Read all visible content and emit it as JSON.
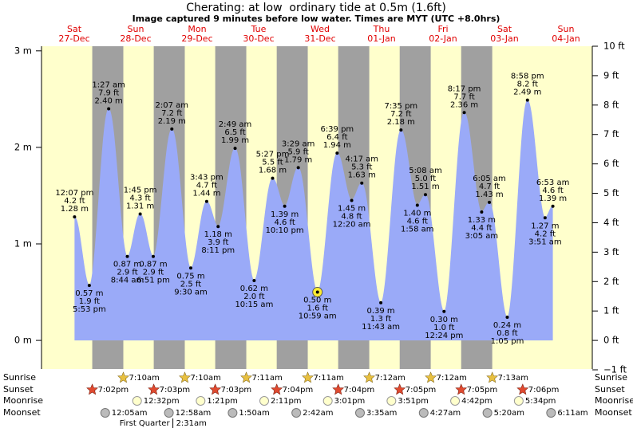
{
  "chart_data": {
    "type": "tide",
    "title": "Cherating: at low  ordinary tide at 0.5m (1.6ft)",
    "subtitle": "Image captured 9 minutes before low water. Times are MYT (UTC +8.0hrs)",
    "ylim": [
      -0.3048,
      3.048
    ],
    "yticks": [
      {
        "value": 0,
        "label": "0 m"
      },
      {
        "value": 1,
        "label": "1 m"
      },
      {
        "value": 2,
        "label": "2 m"
      },
      {
        "value": 3,
        "label": "3 m"
      }
    ],
    "y2lim": [
      -1,
      10
    ],
    "y2ticks": [
      {
        "value": -1,
        "label": "−1 ft"
      },
      {
        "value": 0,
        "label": "0 ft"
      },
      {
        "value": 1,
        "label": "1 ft"
      },
      {
        "value": 2,
        "label": "2 ft"
      },
      {
        "value": 3,
        "label": "3 ft"
      },
      {
        "value": 4,
        "label": "4 ft"
      },
      {
        "value": 5,
        "label": "5 ft"
      },
      {
        "value": 6,
        "label": "6 ft"
      },
      {
        "value": 7,
        "label": "7 ft"
      },
      {
        "value": 8,
        "label": "8 ft"
      },
      {
        "value": 9,
        "label": "9 ft"
      },
      {
        "value": 10,
        "label": "10 ft"
      }
    ],
    "color": "#9aaaf8",
    "row_labels": {
      "sunrise": "Sunrise",
      "sunset": "Sunset",
      "moonrise": "Moonrise",
      "moonset": "Moonset"
    },
    "days": [
      {
        "name": "Sat",
        "date": "27-Dec",
        "sunset": "7:02pm",
        "tides": [
          {
            "time": "12:07 pm",
            "m": 1.28,
            "m_label": "1.28 m",
            "ft_label": "4.2 ft"
          },
          {
            "time": "5:53 pm",
            "m": 0.57,
            "m_label": "0.57 m",
            "ft_label": "1.9 ft"
          }
        ]
      },
      {
        "name": "Sun",
        "date": "28-Dec",
        "sunrise": "7:10am",
        "sunset": "7:03pm",
        "moonrise": "12:32pm",
        "moonset": "12:05am",
        "tides": [
          {
            "time": "1:27 am",
            "m": 2.4,
            "m_label": "2.40 m",
            "ft_label": "7.9 ft"
          },
          {
            "time": "8:44 am",
            "m": 0.87,
            "m_label": "0.87 m",
            "ft_label": "2.9 ft"
          },
          {
            "time": "1:45 pm",
            "m": 1.31,
            "m_label": "1.31 m",
            "ft_label": "4.3 ft"
          },
          {
            "time": "6:51 pm",
            "m": 0.87,
            "m_label": "0.87 m",
            "ft_label": "2.9 ft"
          }
        ]
      },
      {
        "name": "Mon",
        "date": "29-Dec",
        "sunrise": "7:10am",
        "sunset": "7:03pm",
        "moonrise": "1:21pm",
        "moonset": "12:58am",
        "phase": "First Quarter",
        "phase_time": "2:31am",
        "tides": [
          {
            "time": "2:07 am",
            "m": 2.19,
            "m_label": "2.19 m",
            "ft_label": "7.2 ft"
          },
          {
            "time": "9:30 am",
            "m": 0.75,
            "m_label": "0.75 m",
            "ft_label": "2.5 ft"
          },
          {
            "time": "3:43 pm",
            "m": 1.44,
            "m_label": "1.44 m",
            "ft_label": "4.7 ft"
          },
          {
            "time": "8:11 pm",
            "m": 1.18,
            "m_label": "1.18 m",
            "ft_label": "3.9 ft"
          }
        ]
      },
      {
        "name": "Tue",
        "date": "30-Dec",
        "sunrise": "7:11am",
        "sunset": "7:04pm",
        "moonrise": "2:11pm",
        "moonset": "1:50am",
        "tides": [
          {
            "time": "2:49 am",
            "m": 1.99,
            "m_label": "1.99 m",
            "ft_label": "6.5 ft"
          },
          {
            "time": "10:15 am",
            "m": 0.62,
            "m_label": "0.62 m",
            "ft_label": "2.0 ft"
          },
          {
            "time": "5:27 pm",
            "m": 1.68,
            "m_label": "1.68 m",
            "ft_label": "5.5 ft"
          },
          {
            "time": "10:10 pm",
            "m": 1.39,
            "m_label": "1.39 m",
            "ft_label": "4.6 ft"
          }
        ]
      },
      {
        "name": "Wed",
        "date": "31-Dec",
        "sunrise": "7:11am",
        "sunset": "7:04pm",
        "moonrise": "3:01pm",
        "moonset": "2:42am",
        "tides": [
          {
            "time": "3:29 am",
            "m": 1.79,
            "m_label": "1.79 m",
            "ft_label": "5.9 ft"
          },
          {
            "time": "10:59 am",
            "m": 0.5,
            "m_label": "0.50 m",
            "ft_label": "1.6 ft",
            "now": true
          },
          {
            "time": "6:39 pm",
            "m": 1.94,
            "m_label": "1.94 m",
            "ft_label": "6.4 ft"
          }
        ]
      },
      {
        "name": "Thu",
        "date": "01-Jan",
        "sunrise": "7:12am",
        "sunset": "7:05pm",
        "moonrise": "3:51pm",
        "moonset": "3:35am",
        "tides": [
          {
            "time": "12:20 am",
            "m": 1.45,
            "m_label": "1.45 m",
            "ft_label": "4.8 ft"
          },
          {
            "time": "4:17 am",
            "m": 1.63,
            "m_label": "1.63 m",
            "ft_label": "5.3 ft"
          },
          {
            "time": "11:43 am",
            "m": 0.39,
            "m_label": "0.39 m",
            "ft_label": "1.3 ft"
          },
          {
            "time": "7:35 pm",
            "m": 2.18,
            "m_label": "2.18 m",
            "ft_label": "7.2 ft"
          }
        ]
      },
      {
        "name": "Fri",
        "date": "02-Jan",
        "sunrise": "7:12am",
        "sunset": "7:05pm",
        "moonrise": "4:42pm",
        "moonset": "4:27am",
        "tides": [
          {
            "time": "1:58 am",
            "m": 1.4,
            "m_label": "1.40 m",
            "ft_label": "4.6 ft"
          },
          {
            "time": "5:08 am",
            "m": 1.51,
            "m_label": "1.51 m",
            "ft_label": "5.0 ft"
          },
          {
            "time": "12:24 pm",
            "m": 0.3,
            "m_label": "0.30 m",
            "ft_label": "1.0 ft"
          },
          {
            "time": "8:17 pm",
            "m": 2.36,
            "m_label": "2.36 m",
            "ft_label": "7.7 ft"
          }
        ]
      },
      {
        "name": "Sat",
        "date": "03-Jan",
        "sunrise": "7:13am",
        "sunset": "7:06pm",
        "moonrise": "5:34pm",
        "moonset": "5:20am",
        "tides": [
          {
            "time": "3:05 am",
            "m": 1.33,
            "m_label": "1.33 m",
            "ft_label": "4.4 ft"
          },
          {
            "time": "6:05 am",
            "m": 1.43,
            "m_label": "1.43 m",
            "ft_label": "4.7 ft"
          },
          {
            "time": "1:05 pm",
            "m": 0.24,
            "m_label": "0.24 m",
            "ft_label": "0.8 ft"
          },
          {
            "time": "8:58 pm",
            "m": 2.49,
            "m_label": "2.49 m",
            "ft_label": "8.2 ft"
          }
        ]
      },
      {
        "name": "Sun",
        "date": "04-Jan",
        "moonset": "6:11am",
        "tides": [
          {
            "time": "3:51 am",
            "m": 1.27,
            "m_label": "1.27 m",
            "ft_label": "4.2 ft"
          },
          {
            "time": "6:53 am",
            "m": 1.39,
            "m_label": "1.39 m",
            "ft_label": "4.6 ft"
          }
        ]
      }
    ]
  }
}
